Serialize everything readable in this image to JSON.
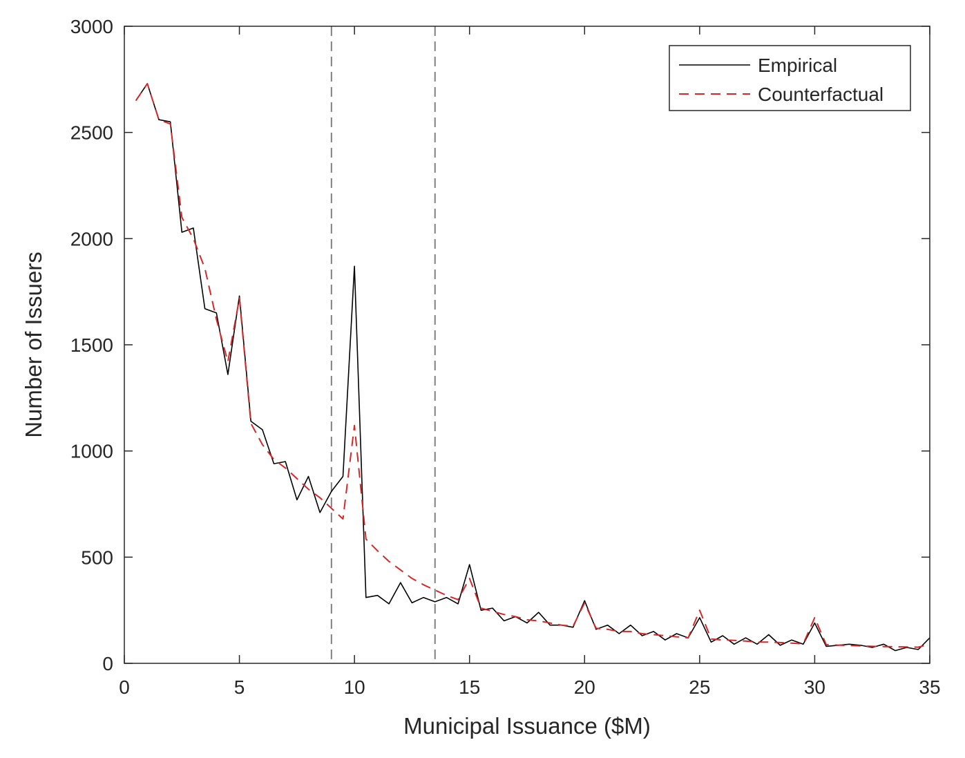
{
  "chart_data": {
    "type": "line",
    "title": "",
    "xlabel": "Municipal Issuance ($M)",
    "ylabel": "Number of Issuers",
    "xlim": [
      0,
      35
    ],
    "ylim": [
      0,
      3000
    ],
    "xticks": [
      0,
      5,
      10,
      15,
      20,
      25,
      30,
      35
    ],
    "yticks": [
      0,
      500,
      1000,
      1500,
      2000,
      2500,
      3000
    ],
    "xtick_labels": [
      "0",
      "5",
      "10",
      "15",
      "20",
      "25",
      "30",
      "35"
    ],
    "ytick_labels": [
      "0",
      "500",
      "1000",
      "1500",
      "2000",
      "2500",
      "3000"
    ],
    "grid": false,
    "legend_position": "top-right",
    "vlines": [
      {
        "x": 9,
        "style": "dashed",
        "color": "#808080"
      },
      {
        "x": 13.5,
        "style": "dashed",
        "color": "#808080"
      }
    ],
    "series": [
      {
        "name": "Empirical",
        "color": "#000000",
        "style": "solid",
        "x": [
          0.5,
          1,
          1.5,
          2,
          2.5,
          3,
          3.5,
          4,
          4.5,
          5,
          5.5,
          6,
          6.5,
          7,
          7.5,
          8,
          8.5,
          9,
          9.5,
          10,
          10.5,
          11,
          11.5,
          12,
          12.5,
          13,
          13.5,
          14,
          14.5,
          15,
          15.5,
          16,
          16.5,
          17,
          17.5,
          18,
          18.5,
          19,
          19.5,
          20,
          20.5,
          21,
          21.5,
          22,
          22.5,
          23,
          23.5,
          24,
          24.5,
          25,
          25.5,
          26,
          26.5,
          27,
          27.5,
          28,
          28.5,
          29,
          29.5,
          30,
          30.5,
          31,
          31.5,
          32,
          32.5,
          33,
          33.5,
          34,
          34.5,
          35
        ],
        "y": [
          2650,
          2730,
          2560,
          2550,
          2030,
          2050,
          1670,
          1650,
          1360,
          1730,
          1140,
          1100,
          940,
          950,
          770,
          880,
          710,
          810,
          880,
          1870,
          310,
          320,
          280,
          380,
          285,
          310,
          290,
          310,
          280,
          465,
          250,
          260,
          200,
          220,
          190,
          240,
          180,
          180,
          170,
          295,
          160,
          180,
          140,
          180,
          130,
          150,
          110,
          140,
          120,
          215,
          100,
          130,
          90,
          120,
          90,
          135,
          85,
          110,
          90,
          190,
          80,
          85,
          90,
          85,
          75,
          90,
          60,
          75,
          65,
          120
        ]
      },
      {
        "name": "Counterfactual",
        "color": "#d62728",
        "style": "dashed",
        "x": [
          0.5,
          1,
          1.5,
          2,
          2.5,
          3,
          3.5,
          4,
          4.5,
          5,
          5.5,
          6,
          6.5,
          7,
          7.5,
          8,
          8.5,
          9,
          9.5,
          10,
          10.5,
          11,
          11.5,
          12,
          12.5,
          13,
          13.5,
          14,
          14.5,
          15,
          15.5,
          16,
          16.5,
          17,
          17.5,
          18,
          18.5,
          19,
          19.5,
          20,
          20.5,
          21,
          21.5,
          22,
          22.5,
          23,
          23.5,
          24,
          24.5,
          25,
          25.5,
          26,
          26.5,
          27,
          27.5,
          28,
          28.5,
          29,
          29.5,
          30,
          30.5,
          31,
          31.5,
          32,
          32.5,
          33,
          33.5,
          34,
          34.5,
          35
        ],
        "y": [
          2650,
          2730,
          2560,
          2540,
          2100,
          2000,
          1860,
          1620,
          1420,
          1720,
          1130,
          1030,
          960,
          920,
          870,
          820,
          780,
          730,
          680,
          1120,
          585,
          530,
          480,
          440,
          400,
          370,
          345,
          320,
          300,
          400,
          260,
          245,
          230,
          220,
          205,
          200,
          190,
          180,
          175,
          285,
          165,
          160,
          150,
          150,
          140,
          135,
          130,
          125,
          120,
          250,
          115,
          110,
          108,
          105,
          100,
          100,
          98,
          95,
          92,
          215,
          88,
          86,
          84,
          82,
          80,
          79,
          78,
          77,
          76,
          90
        ]
      }
    ]
  }
}
